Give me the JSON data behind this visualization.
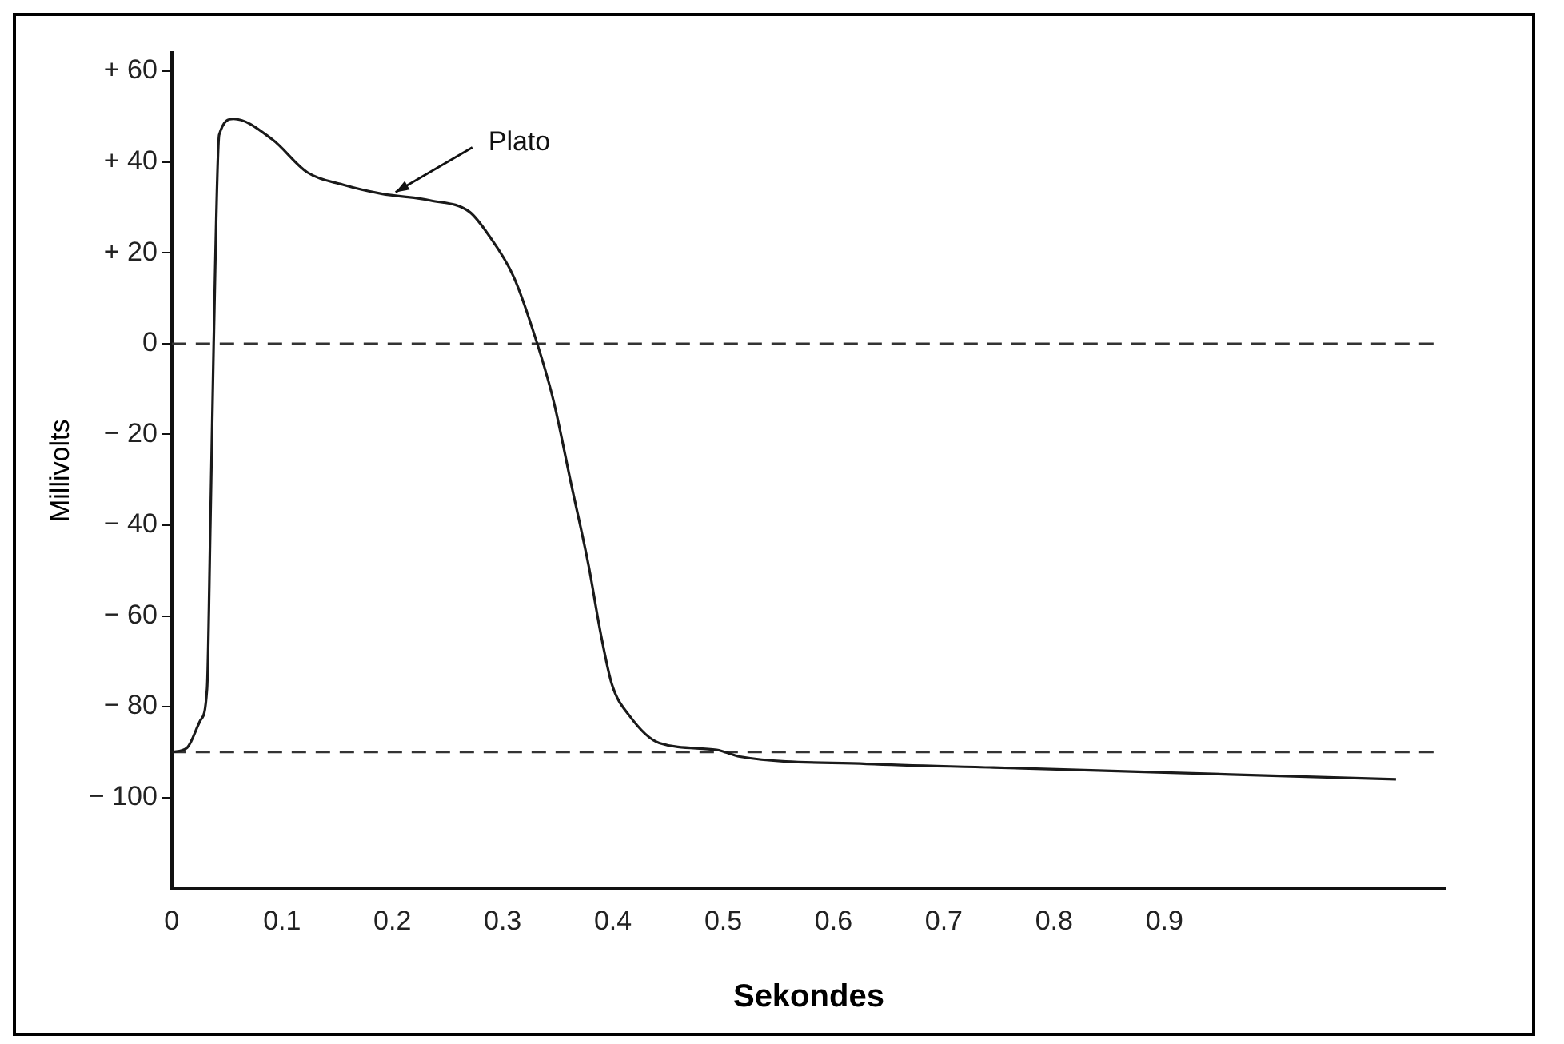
{
  "chart_data": {
    "type": "line",
    "xlabel": "Sekondes",
    "ylabel": "Millivolts",
    "x": [
      0,
      0.014,
      0.026,
      0.032,
      0.035,
      0.038,
      0.043,
      0.056,
      0.091,
      0.123,
      0.155,
      0.19,
      0.235,
      0.27,
      0.287,
      0.31,
      0.33,
      0.346,
      0.362,
      0.378,
      0.389,
      0.399,
      0.415,
      0.442,
      0.494,
      0.515,
      0.63,
      0.745,
      0.9,
      1.11
    ],
    "series": [
      {
        "color": "#1a1a1a",
        "values": [
          -90,
          -89,
          -83,
          -76,
          -40,
          0,
          46,
          49.5,
          45,
          37.7,
          35,
          33,
          31.5,
          29,
          24,
          14.7,
          1,
          -12.5,
          -30.8,
          -49,
          -64,
          -75,
          -82,
          -88,
          -89.5,
          -91,
          -92.6,
          -93.4,
          -94.5,
          -96
        ]
      }
    ],
    "xlim": [
      0,
      1.155
    ],
    "xticks": [
      0,
      0.1,
      0.2,
      0.3,
      0.4,
      0.5,
      0.6,
      0.7,
      0.8,
      0.9
    ],
    "ylim": [
      -120,
      64
    ],
    "yticks": [
      {
        "value": 60,
        "label": "+ 60"
      },
      {
        "value": 40,
        "label": "+ 40"
      },
      {
        "value": 20,
        "label": "+ 20"
      },
      0,
      {
        "value": -20,
        "label": "− 20"
      },
      {
        "value": -40,
        "label": "− 40"
      },
      {
        "value": -60,
        "label": "− 60"
      },
      {
        "value": -80,
        "label": "− 80"
      },
      {
        "value": -100,
        "label": "− 100"
      }
    ],
    "ref_lines": [
      {
        "axis": "y",
        "value": 0,
        "color": "#333333",
        "line_style": "dashed"
      },
      {
        "axis": "y",
        "value": -90,
        "color": "#333333",
        "line_style": "dashed"
      }
    ],
    "annotations": [
      {
        "text": "Plato",
        "x": 0.2,
        "y": 33
      }
    ],
    "grid": false,
    "legend": false,
    "marker": "none",
    "line_style": "solid"
  }
}
